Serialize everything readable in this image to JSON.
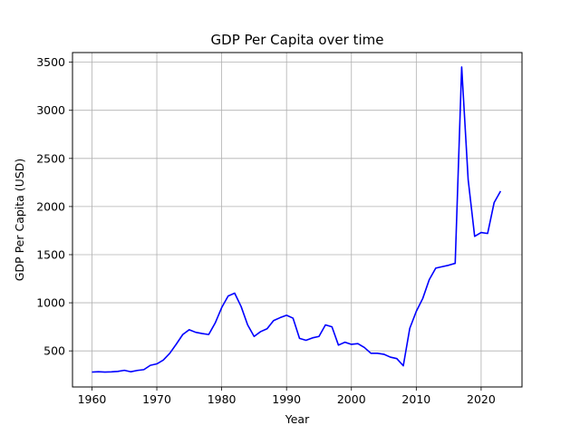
{
  "chart_data": {
    "type": "line",
    "title": "GDP Per Capita over time",
    "xlabel": "Year",
    "ylabel": "GDP Per Capita (USD)",
    "xlim": [
      1957,
      2026.3
    ],
    "ylim": [
      125,
      3600
    ],
    "xticks": [
      1960,
      1970,
      1980,
      1990,
      2000,
      2010,
      2020
    ],
    "yticks": [
      500,
      1000,
      1500,
      2000,
      2500,
      3000,
      3500
    ],
    "grid": true,
    "series": [
      {
        "color": "#0000ff",
        "x": [
          1960,
          1961,
          1962,
          1963,
          1964,
          1965,
          1966,
          1967,
          1968,
          1969,
          1970,
          1971,
          1972,
          1973,
          1974,
          1975,
          1976,
          1977,
          1978,
          1979,
          1980,
          1981,
          1982,
          1983,
          1984,
          1985,
          1986,
          1987,
          1988,
          1989,
          1990,
          1991,
          1992,
          1993,
          1994,
          1995,
          1996,
          1997,
          1998,
          1999,
          2000,
          2001,
          2002,
          2003,
          2004,
          2005,
          2006,
          2007,
          2008,
          2009,
          2010,
          2011,
          2012,
          2013,
          2014,
          2015,
          2016,
          2017,
          2018,
          2019,
          2020,
          2021,
          2022,
          2023
        ],
        "values": [
          280,
          283,
          280,
          282,
          287,
          298,
          283,
          297,
          305,
          350,
          365,
          405,
          475,
          570,
          670,
          720,
          693,
          680,
          670,
          790,
          950,
          1070,
          1100,
          960,
          770,
          650,
          700,
          730,
          815,
          845,
          870,
          840,
          630,
          610,
          635,
          650,
          770,
          750,
          560,
          590,
          568,
          575,
          535,
          475,
          475,
          465,
          435,
          420,
          345,
          735,
          910,
          1045,
          1240,
          1360,
          1375,
          1390,
          1410,
          3450,
          2280,
          1690,
          1730,
          1720,
          2040,
          2160
        ]
      }
    ]
  }
}
